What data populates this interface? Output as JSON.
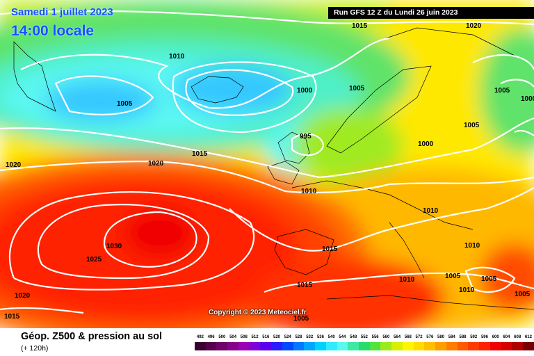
{
  "header": {
    "date": "Samedi 1 juillet 2023",
    "time": "14:00 locale",
    "run_info": "Run GFS 12 Z du Lundi 26 juin 2023"
  },
  "copyright": "Copyright © 2023 Meteociel.fr",
  "legend": {
    "title": "Géop. Z500 & pression au sol",
    "subtitle": "(+ 120h)",
    "scale": [
      {
        "value": "492",
        "color": "#3a0030"
      },
      {
        "value": "496",
        "color": "#54004a"
      },
      {
        "value": "500",
        "color": "#6e0068"
      },
      {
        "value": "504",
        "color": "#880088"
      },
      {
        "value": "508",
        "color": "#9c00b4"
      },
      {
        "value": "512",
        "color": "#8000d8"
      },
      {
        "value": "516",
        "color": "#5a00f0"
      },
      {
        "value": "520",
        "color": "#2a1cff"
      },
      {
        "value": "524",
        "color": "#0048ff"
      },
      {
        "value": "528",
        "color": "#0078ff"
      },
      {
        "value": "532",
        "color": "#00a6ff"
      },
      {
        "value": "536",
        "color": "#00d2ff"
      },
      {
        "value": "540",
        "color": "#30ecff"
      },
      {
        "value": "544",
        "color": "#5cf7ee"
      },
      {
        "value": "548",
        "color": "#3ee7a4"
      },
      {
        "value": "552",
        "color": "#28dc6a"
      },
      {
        "value": "556",
        "color": "#50e43c"
      },
      {
        "value": "560",
        "color": "#9aea1c"
      },
      {
        "value": "564",
        "color": "#d6f000"
      },
      {
        "value": "568",
        "color": "#fff500"
      },
      {
        "value": "572",
        "color": "#ffdc00"
      },
      {
        "value": "576",
        "color": "#ffbf00"
      },
      {
        "value": "580",
        "color": "#ff9e00"
      },
      {
        "value": "584",
        "color": "#ff7e00"
      },
      {
        "value": "588",
        "color": "#ff5a00"
      },
      {
        "value": "592",
        "color": "#ff3a00"
      },
      {
        "value": "596",
        "color": "#ff2000"
      },
      {
        "value": "600",
        "color": "#f00000"
      },
      {
        "value": "604",
        "color": "#d40000"
      },
      {
        "value": "608",
        "color": "#b00000"
      },
      {
        "value": "612",
        "color": "#780000"
      }
    ]
  },
  "isobar_labels": [
    "1015",
    "1020",
    "1010",
    "1005",
    "1000",
    "1005",
    "1005",
    "1000",
    "995",
    "1005",
    "1000",
    "1015",
    "1020",
    "1020",
    "1010",
    "1010",
    "1030",
    "1025",
    "1015",
    "1010",
    "1010",
    "1005",
    "1015",
    "1020",
    "1015",
    "1005",
    "1005",
    "1010",
    "1005"
  ]
}
